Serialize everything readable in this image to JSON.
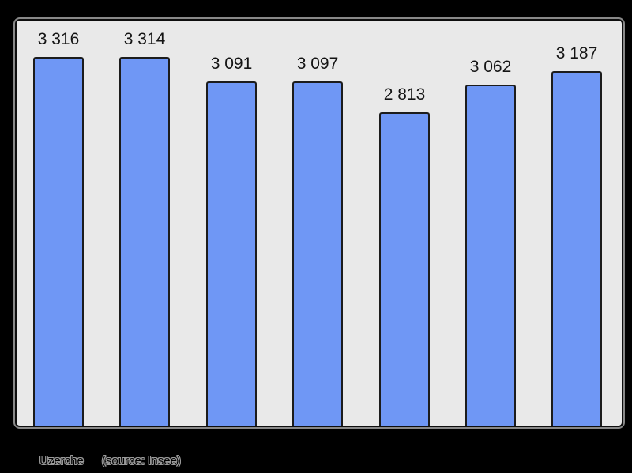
{
  "chart_data": {
    "type": "bar",
    "title": "",
    "xlabel": "",
    "ylabel": "",
    "values": [
      3316,
      3314,
      3091,
      3097,
      2813,
      3062,
      3187
    ],
    "bar_labels": [
      "3 316",
      "3 314",
      "3 091",
      "3 097",
      "2 813",
      "3 062",
      "3 187"
    ],
    "ylim": [
      0,
      3640
    ],
    "grid": false,
    "legend": false,
    "axis_tick_labels_visible": false
  },
  "caption": {
    "place": "Uzerche",
    "source": "(source: Insee)"
  },
  "colors": {
    "page_bg": "#000000",
    "panel_bg": "#e9e9e9",
    "panel_border": "#0d0d0d",
    "panel_halo": "#888888",
    "bar_fill": "#6f97f5",
    "bar_border": "#1c1c1c",
    "value_label_color": "#141414",
    "caption_halo": "#9a9a9a"
  }
}
